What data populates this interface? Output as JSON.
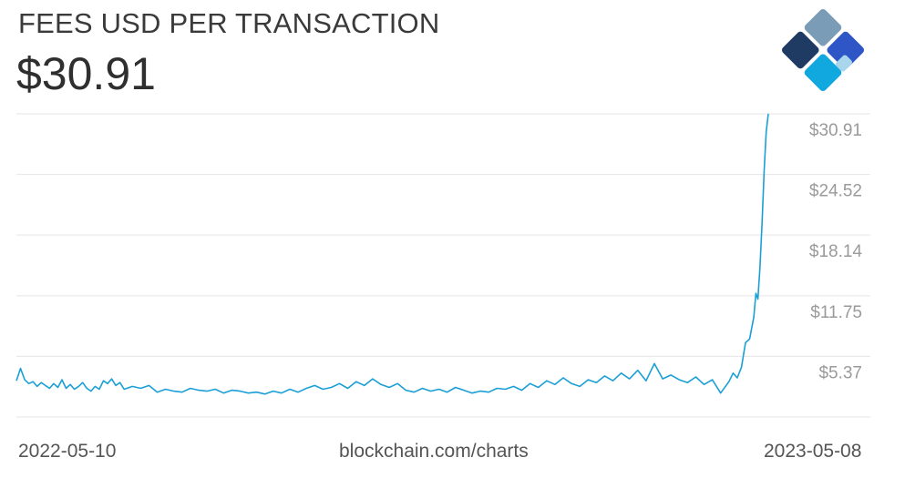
{
  "header": {
    "title": "FEES USD PER TRANSACTION",
    "value": "$30.91"
  },
  "logo": {
    "icon": "blockchain-logo-icon",
    "colors": [
      "#7a9cb6",
      "#1f3a63",
      "#2f56c6",
      "#11a8e0",
      "#a9d6ec"
    ]
  },
  "footer": {
    "start_date": "2022-05-10",
    "source": "blockchain.com/charts",
    "end_date": "2023-05-08"
  },
  "chart_data": {
    "type": "line",
    "title": "FEES USD PER TRANSACTION",
    "xlabel": "",
    "ylabel": "",
    "x_range": [
      "2022-05-10",
      "2023-05-08"
    ],
    "ylim": [
      -1.02,
      30.91
    ],
    "y_ticks": [
      5.37,
      11.75,
      18.14,
      24.52,
      30.91
    ],
    "y_tick_labels": [
      "$5.37",
      "$11.75",
      "$18.14",
      "$24.52",
      "$30.91"
    ],
    "grid": true,
    "line_color": "#1a9fd6",
    "series": [
      {
        "x": [
          "2022-05-10",
          "2022-05-12",
          "2022-05-14",
          "2022-05-16",
          "2022-05-18",
          "2022-05-20",
          "2022-05-22",
          "2022-05-24",
          "2022-05-26",
          "2022-05-28",
          "2022-05-30",
          "2022-06-01",
          "2022-06-03",
          "2022-06-05",
          "2022-06-07",
          "2022-06-09",
          "2022-06-11",
          "2022-06-13",
          "2022-06-15",
          "2022-06-17",
          "2022-06-19",
          "2022-06-21",
          "2022-06-23",
          "2022-06-25",
          "2022-06-27",
          "2022-06-29",
          "2022-07-01",
          "2022-07-05",
          "2022-07-09",
          "2022-07-13",
          "2022-07-17",
          "2022-07-21",
          "2022-07-25",
          "2022-07-29",
          "2022-08-02",
          "2022-08-06",
          "2022-08-10",
          "2022-08-14",
          "2022-08-18",
          "2022-08-22",
          "2022-08-26",
          "2022-08-30",
          "2022-09-03",
          "2022-09-07",
          "2022-09-11",
          "2022-09-15",
          "2022-09-19",
          "2022-09-23",
          "2022-09-27",
          "2022-10-01",
          "2022-10-05",
          "2022-10-09",
          "2022-10-13",
          "2022-10-17",
          "2022-10-21",
          "2022-10-25",
          "2022-10-29",
          "2022-11-02",
          "2022-11-06",
          "2022-11-10",
          "2022-11-14",
          "2022-11-18",
          "2022-11-22",
          "2022-11-26",
          "2022-11-30",
          "2022-12-04",
          "2022-12-08",
          "2022-12-12",
          "2022-12-16",
          "2022-12-20",
          "2022-12-24",
          "2022-12-28",
          "2023-01-01",
          "2023-01-05",
          "2023-01-09",
          "2023-01-13",
          "2023-01-17",
          "2023-01-21",
          "2023-01-25",
          "2023-01-29",
          "2023-02-02",
          "2023-02-06",
          "2023-02-10",
          "2023-02-14",
          "2023-02-18",
          "2023-02-22",
          "2023-02-26",
          "2023-03-02",
          "2023-03-06",
          "2023-03-10",
          "2023-03-14",
          "2023-03-18",
          "2023-03-22",
          "2023-03-26",
          "2023-03-30",
          "2023-04-03",
          "2023-04-07",
          "2023-04-11",
          "2023-04-15",
          "2023-04-19",
          "2023-04-21",
          "2023-04-23",
          "2023-04-25",
          "2023-04-27",
          "2023-04-29",
          "2023-05-01",
          "2023-05-02",
          "2023-05-03",
          "2023-05-04",
          "2023-05-05",
          "2023-05-06",
          "2023-05-07",
          "2023-05-08"
        ],
        "values": [
          2.8,
          4.1,
          2.9,
          2.5,
          2.7,
          2.2,
          2.6,
          2.3,
          2.0,
          2.5,
          2.1,
          2.9,
          2.0,
          2.4,
          1.9,
          2.2,
          2.6,
          2.0,
          1.7,
          2.2,
          1.9,
          2.8,
          2.5,
          3.0,
          2.3,
          2.6,
          1.9,
          2.2,
          2.0,
          2.3,
          1.6,
          1.9,
          1.7,
          1.6,
          2.0,
          1.8,
          1.7,
          1.9,
          1.5,
          1.8,
          1.7,
          1.5,
          1.6,
          1.4,
          1.7,
          1.5,
          1.9,
          1.6,
          2.0,
          2.3,
          1.9,
          2.1,
          2.5,
          2.0,
          2.7,
          2.3,
          3.0,
          2.4,
          2.1,
          2.5,
          1.8,
          1.6,
          2.0,
          1.7,
          1.9,
          1.6,
          2.1,
          1.8,
          1.5,
          1.7,
          1.6,
          2.0,
          1.9,
          2.2,
          1.8,
          2.5,
          2.1,
          2.8,
          2.4,
          3.1,
          2.5,
          2.2,
          2.9,
          2.6,
          3.3,
          2.8,
          3.6,
          3.0,
          3.9,
          2.8,
          4.6,
          3.0,
          3.4,
          2.9,
          2.6,
          3.2,
          2.4,
          2.9,
          1.5,
          2.7,
          3.6,
          3.1,
          4.2,
          6.8,
          7.2,
          9.5,
          12.0,
          11.4,
          14.8,
          19.5,
          25.0,
          29.0,
          30.91
        ]
      }
    ]
  }
}
